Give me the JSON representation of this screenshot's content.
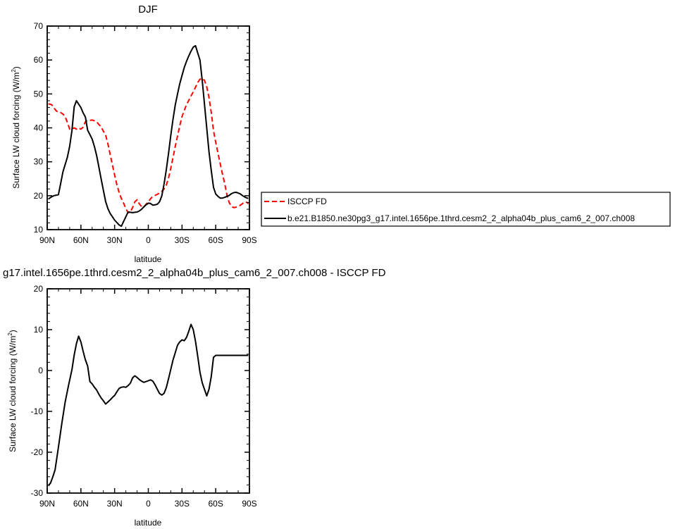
{
  "chart_data": [
    {
      "type": "line",
      "title": "DJF",
      "xlabel": "latitude",
      "ylabel_main": "Surface LW cloud forcing (W/m",
      "ylabel_sup": "2",
      "ylabel_close": ")",
      "xlim": [
        90,
        -90
      ],
      "ylim": [
        10,
        70
      ],
      "x_ticks": [
        {
          "value": 90,
          "label": "90N"
        },
        {
          "value": 60,
          "label": "60N"
        },
        {
          "value": 30,
          "label": "30N"
        },
        {
          "value": 0,
          "label": "0"
        },
        {
          "value": -30,
          "label": "30S"
        },
        {
          "value": -60,
          "label": "60S"
        },
        {
          "value": -90,
          "label": "90S"
        }
      ],
      "y_ticks": [
        10,
        20,
        30,
        40,
        50,
        60,
        70
      ],
      "legend_placement": "right",
      "series": [
        {
          "name": "ISCCP FD",
          "color": "#ff0000",
          "dash": true,
          "x": [
            89,
            86,
            84,
            82,
            80,
            78,
            76,
            74,
            72,
            70,
            68,
            66,
            64,
            62,
            60,
            58,
            56,
            54,
            52,
            50,
            48,
            46,
            44,
            42,
            40,
            38,
            36,
            34,
            32,
            30,
            28,
            26,
            24,
            22,
            20,
            18,
            16,
            14,
            12,
            10,
            8,
            6,
            4,
            2,
            0,
            -2,
            -4,
            -6,
            -8,
            -10,
            -12,
            -14,
            -16,
            -18,
            -20,
            -22,
            -24,
            -26,
            -28,
            -30,
            -32,
            -34,
            -36,
            -38,
            -40,
            -42,
            -44,
            -46,
            -48,
            -50,
            -52,
            -54,
            -56,
            -58,
            -60,
            -62,
            -64,
            -66,
            -68,
            -70,
            -72,
            -74,
            -76,
            -78,
            -80,
            -82,
            -84,
            -86,
            -88,
            -89
          ],
          "values": [
            47.1,
            46.8,
            45.9,
            45.0,
            44.6,
            44.5,
            44.1,
            43.3,
            41.6,
            39.6,
            39.6,
            40.0,
            39.6,
            40.0,
            39.6,
            40.2,
            41.8,
            42.2,
            42.2,
            42.3,
            42.1,
            41.8,
            41.0,
            40.3,
            39.0,
            37.9,
            35.3,
            32.2,
            29.1,
            26.1,
            23.2,
            21.0,
            19.2,
            17.8,
            16.2,
            15.0,
            15.2,
            16.5,
            18.2,
            18.8,
            17.6,
            16.8,
            16.7,
            17.5,
            18.2,
            19.1,
            19.8,
            20.1,
            20.4,
            20.8,
            21.3,
            22.0,
            23.1,
            25.2,
            28.1,
            31.3,
            34.6,
            37.6,
            40.6,
            43.3,
            45.1,
            46.8,
            48.1,
            49.4,
            50.6,
            52.0,
            53.4,
            54.3,
            54.6,
            54.0,
            52.1,
            49.0,
            44.6,
            39.2,
            35.7,
            32.5,
            29.5,
            26.4,
            23.6,
            20.2,
            18.0,
            16.8,
            16.5,
            16.6,
            16.9,
            17.2,
            17.7,
            18.2,
            18.0,
            17.6
          ],
          "x_short": [
            89,
            85,
            80,
            75,
            72,
            68,
            64,
            60,
            56,
            52,
            48,
            44,
            40,
            36,
            32,
            28,
            24,
            20,
            16,
            12,
            9,
            6,
            3,
            0,
            -3,
            -6,
            -10,
            -14,
            -18,
            -22,
            -26,
            -30,
            -34,
            -38,
            -42,
            -46,
            -50,
            -54,
            -58,
            -60,
            -62,
            -65,
            -68,
            -72,
            -76,
            -80,
            -84,
            -88,
            -89
          ]
        },
        {
          "name": "b.e21.B1850.ne30pg3_g17.intel.1656pe.1thrd.cesm2_2_alpha04b_plus_cam6_2_007.ch008",
          "color": "#000000",
          "dash": false,
          "x": [
            89,
            86,
            84,
            80,
            78,
            76,
            72,
            70,
            68,
            66,
            64,
            62,
            60,
            58,
            56,
            54,
            52,
            50,
            48,
            46,
            44,
            42,
            40,
            38,
            36,
            34,
            32,
            30,
            28,
            26,
            24,
            22,
            20,
            18,
            16,
            14,
            12,
            10,
            8,
            6,
            4,
            2,
            0,
            -2,
            -4,
            -6,
            -8,
            -10,
            -12,
            -14,
            -16,
            -18,
            -20,
            -22,
            -24,
            -26,
            -28,
            -30,
            -32,
            -34,
            -36,
            -38,
            -40,
            -42,
            -44,
            -46,
            -48,
            -50,
            -52,
            -54,
            -56,
            -58,
            -60,
            -62,
            -64,
            -66,
            -68,
            -70,
            -72,
            -74,
            -76,
            -78,
            -80,
            -82,
            -84,
            -86,
            -88,
            -89
          ],
          "values": [
            19.0,
            19.7,
            20.0,
            20.3,
            23.6,
            27.0,
            31.4,
            34.6,
            39.2,
            46.2,
            48.0,
            47.0,
            46.0,
            44.4,
            43.2,
            39.3,
            38.0,
            36.7,
            34.5,
            31.8,
            28.5,
            25.0,
            21.6,
            18.3,
            16.2,
            14.8,
            13.8,
            12.8,
            12.1,
            11.4,
            11.0,
            12.4,
            13.8,
            15.2,
            15.1,
            15.0,
            15.1,
            15.2,
            15.5,
            16.0,
            16.7,
            17.3,
            17.8,
            17.7,
            17.2,
            17.3,
            17.5,
            18.2,
            19.9,
            23.4,
            27.6,
            32.5,
            37.8,
            42.6,
            46.8,
            50.0,
            53.0,
            55.4,
            57.8,
            59.6,
            61.2,
            62.6,
            63.8,
            64.2,
            62.0,
            60.0,
            54.0,
            47.0,
            40.0,
            33.0,
            27.5,
            22.5,
            20.5,
            19.8,
            19.3,
            19.3,
            19.5,
            19.8,
            20.1,
            20.6,
            20.9,
            21.0,
            20.8,
            20.5,
            20.0,
            19.6,
            19.3,
            19.2
          ]
        }
      ]
    },
    {
      "type": "line",
      "title": "g17.intel.1656pe.1thrd.cesm2_2_alpha04b_plus_cam6_2_007.ch008 - ISCCP FD",
      "xlabel": "latitude",
      "ylabel_main": "Surface LW cloud forcing (W/m",
      "ylabel_sup": "2",
      "ylabel_close": ")",
      "xlim": [
        90,
        -90
      ],
      "ylim": [
        -30,
        20
      ],
      "x_ticks": [
        {
          "value": 90,
          "label": "90N"
        },
        {
          "value": 60,
          "label": "60N"
        },
        {
          "value": 30,
          "label": "30N"
        },
        {
          "value": 0,
          "label": "0"
        },
        {
          "value": -30,
          "label": "30S"
        },
        {
          "value": -60,
          "label": "60S"
        },
        {
          "value": -90,
          "label": "90S"
        }
      ],
      "y_ticks": [
        -30,
        -20,
        -10,
        0,
        10,
        20
      ],
      "series": [
        {
          "color": "#000000",
          "dash": false,
          "x": [
            89,
            87,
            85,
            83,
            80,
            77,
            74,
            71,
            68,
            66,
            64,
            62,
            60,
            58,
            56,
            54,
            52,
            50,
            48,
            46,
            44,
            42,
            40,
            38,
            36,
            34,
            32,
            30,
            28,
            26,
            24,
            22,
            20,
            18,
            16,
            14,
            12,
            10,
            8,
            6,
            4,
            2,
            0,
            -2,
            -4,
            -6,
            -8,
            -10,
            -12,
            -14,
            -16,
            -18,
            -20,
            -22,
            -24,
            -26,
            -28,
            -30,
            -32,
            -34,
            -36,
            -38,
            -40,
            -42,
            -44,
            -46,
            -48,
            -50,
            -52,
            -54,
            -56,
            -58,
            -60,
            -62,
            -64,
            -66,
            -68,
            -70,
            -72,
            -74,
            -76,
            -78,
            -80,
            -82,
            -84,
            -86,
            -88,
            -89
          ],
          "values": [
            -28.2,
            -27.5,
            -26.0,
            -24.3,
            -18.8,
            -13.0,
            -7.7,
            -3.6,
            0.2,
            3.8,
            6.6,
            8.4,
            7.0,
            4.7,
            2.6,
            1.1,
            -2.7,
            -3.3,
            -4.1,
            -4.8,
            -5.8,
            -6.7,
            -7.4,
            -8.2,
            -7.7,
            -7.2,
            -6.6,
            -6.1,
            -5.2,
            -4.4,
            -4.1,
            -4.0,
            -4.1,
            -3.7,
            -3.1,
            -1.8,
            -1.3,
            -1.7,
            -2.2,
            -2.6,
            -2.9,
            -2.7,
            -2.5,
            -2.3,
            -2.6,
            -3.5,
            -4.6,
            -5.6,
            -6.0,
            -5.6,
            -4.2,
            -2.0,
            0.3,
            2.6,
            4.4,
            6.2,
            7.0,
            7.5,
            7.3,
            8.1,
            9.6,
            11.3,
            10.0,
            7.1,
            3.4,
            -0.4,
            -3.0,
            -4.6,
            -6.2,
            -4.6,
            -1.5,
            3.2,
            3.7,
            3.7,
            3.7,
            3.7,
            3.7,
            3.7,
            3.7,
            3.7,
            3.7,
            3.7,
            3.7,
            3.7,
            3.7,
            3.7,
            3.7,
            3.7
          ]
        }
      ]
    }
  ]
}
